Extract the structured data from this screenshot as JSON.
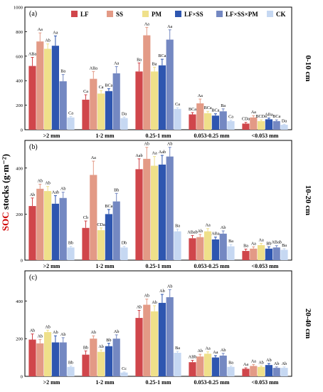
{
  "legend": [
    {
      "key": "LF",
      "label": "LF",
      "color": "#d0464b"
    },
    {
      "key": "SS",
      "label": "SS",
      "color": "#e39a86"
    },
    {
      "key": "PM",
      "label": "PM",
      "color": "#efe08a"
    },
    {
      "key": "LFSS",
      "label": "LF×SS",
      "color": "#2e56b0"
    },
    {
      "key": "LFSSPM",
      "label": "LF×SS×PM",
      "color": "#7488c2"
    },
    {
      "key": "CK",
      "label": "CK",
      "color": "#c6d8f2"
    }
  ],
  "y_axis_label_prefix": "SOC",
  "y_axis_label_suffix": " stocks (g·m⁻²)",
  "chart_data": [
    {
      "type": "bar",
      "panel": "(a)",
      "depth": "0-10 cm",
      "categories": [
        ">2 mm",
        "1-2 mm",
        "0.25-1 mm",
        "0.053-0.25 mm",
        "<0.053 mm"
      ],
      "ylim": [
        0,
        1000
      ],
      "yticks": [
        0,
        200,
        400,
        600,
        800,
        1000
      ],
      "series": [
        {
          "name": "LF",
          "values": [
            520,
            245,
            475,
            125,
            50
          ],
          "errors": [
            70,
            40,
            70,
            15,
            10
          ],
          "labels": [
            "ABa",
            "Ca",
            "Ba",
            "BCa",
            "CDa"
          ]
        },
        {
          "name": "SS",
          "values": [
            720,
            415,
            770,
            215,
            100
          ],
          "errors": [
            70,
            60,
            65,
            35,
            15
          ],
          "labels": [
            "Aa",
            "ABa",
            "Aa",
            "Aa",
            "Aa"
          ]
        },
        {
          "name": "PM",
          "values": [
            660,
            295,
            475,
            135,
            70
          ],
          "errors": [
            40,
            25,
            35,
            15,
            10
          ],
          "labels": [
            "Ab",
            "Ca",
            "Ba",
            "BCa",
            "BCDa"
          ]
        },
        {
          "name": "LF×SS",
          "values": [
            685,
            315,
            525,
            115,
            85
          ],
          "errors": [
            80,
            20,
            50,
            15,
            10
          ],
          "labels": [
            "Aa",
            "BCa",
            "BCa",
            "BCa",
            "ABa"
          ]
        },
        {
          "name": "LF×SS×PM",
          "values": [
            395,
            460,
            735,
            150,
            70
          ],
          "errors": [
            55,
            55,
            80,
            20,
            10
          ],
          "labels": [
            "Ba",
            "Aa",
            "Aa",
            "Ba",
            "BCa"
          ]
        },
        {
          "name": "CK",
          "values": [
            100,
            95,
            170,
            70,
            40
          ],
          "errors": [
            8,
            8,
            10,
            8,
            5
          ],
          "labels": [
            "Ca",
            "Da",
            "Ca",
            "Ca",
            "Da"
          ]
        }
      ]
    },
    {
      "type": "bar",
      "panel": "(b)",
      "depth": "10-20 cm",
      "categories": [
        ">2 mm",
        "1-2 mm",
        "0.25-1 mm",
        "0.053-0.25 mm",
        "<0.053 mm"
      ],
      "ylim": [
        0,
        520
      ],
      "yticks": [
        0,
        200,
        400
      ],
      "series": [
        {
          "name": "LF",
          "values": [
            235,
            140,
            395,
            95,
            40
          ],
          "errors": [
            35,
            30,
            45,
            12,
            8
          ],
          "labels": [
            "Ab",
            "Cb",
            "Aab",
            "ABab",
            "Ba"
          ]
        },
        {
          "name": "SS",
          "values": [
            310,
            370,
            440,
            100,
            50
          ],
          "errors": [
            20,
            60,
            50,
            12,
            8
          ],
          "labels": [
            "Ab",
            "Aa",
            "Ab",
            "Ab",
            "Aa"
          ]
        },
        {
          "name": "PM",
          "values": [
            300,
            130,
            410,
            125,
            65
          ],
          "errors": [
            20,
            10,
            40,
            12,
            8
          ],
          "labels": [
            "Ab",
            "CDa",
            "Aa",
            "Aa",
            "Aa"
          ]
        },
        {
          "name": "LF×SS",
          "values": [
            245,
            200,
            415,
            90,
            50
          ],
          "errors": [
            35,
            20,
            40,
            10,
            8
          ],
          "labels": [
            "Aab",
            "BCa",
            "Aab",
            "ABa",
            "Bb"
          ]
        },
        {
          "name": "LF×SS×PM",
          "values": [
            270,
            255,
            450,
            115,
            55
          ],
          "errors": [
            25,
            35,
            40,
            12,
            8
          ],
          "labels": [
            "Ab",
            "Bb",
            "Ab",
            "Ab",
            "ABab"
          ]
        },
        {
          "name": "CK",
          "values": [
            55,
            55,
            125,
            60,
            45
          ],
          "errors": [
            5,
            5,
            10,
            8,
            5
          ],
          "labels": [
            "Bb",
            "Db",
            "Ba",
            "Ba",
            "Ba"
          ]
        }
      ]
    },
    {
      "type": "bar",
      "panel": "(c)",
      "depth": "20-40 cm",
      "categories": [
        ">2 mm",
        "1-2 mm",
        "0.25-1 mm",
        "0.053-0.25 mm",
        "<0.053 mm"
      ],
      "ylim": [
        0,
        560
      ],
      "yticks": [
        0,
        200,
        400
      ],
      "series": [
        {
          "name": "LF",
          "values": [
            195,
            115,
            310,
            75,
            40
          ],
          "errors": [
            30,
            20,
            40,
            10,
            5
          ],
          "labels": [
            "Ab",
            "Bb",
            "Ab",
            "ABb",
            "Aa"
          ]
        },
        {
          "name": "SS",
          "values": [
            175,
            200,
            380,
            105,
            55
          ],
          "errors": [
            20,
            15,
            30,
            12,
            8
          ],
          "labels": [
            "Ab",
            "Ab",
            "Ab",
            "Ab",
            "Aa"
          ]
        },
        {
          "name": "PM",
          "values": [
            235,
            130,
            345,
            120,
            50
          ],
          "errors": [
            10,
            10,
            30,
            10,
            5
          ],
          "labels": [
            "Ab",
            "Ab",
            "Ab",
            "Aa",
            "Ab"
          ]
        },
        {
          "name": "LF×SS",
          "values": [
            180,
            160,
            390,
            100,
            60
          ],
          "errors": [
            35,
            15,
            45,
            10,
            8
          ],
          "labels": [
            "Ab",
            "Bb",
            "Ab",
            "Aa",
            "Ab"
          ]
        },
        {
          "name": "LF×SS×PM",
          "values": [
            180,
            200,
            420,
            110,
            45
          ],
          "errors": [
            25,
            20,
            40,
            12,
            5
          ],
          "labels": [
            "Ab",
            "Ab",
            "Ab",
            "Ab",
            "Ab"
          ]
        },
        {
          "name": "CK",
          "values": [
            50,
            20,
            125,
            50,
            45
          ],
          "errors": [
            5,
            3,
            8,
            5,
            5
          ],
          "labels": [
            "Bb",
            "Cc",
            "Ba",
            "Ba",
            "Ab"
          ]
        }
      ]
    }
  ]
}
